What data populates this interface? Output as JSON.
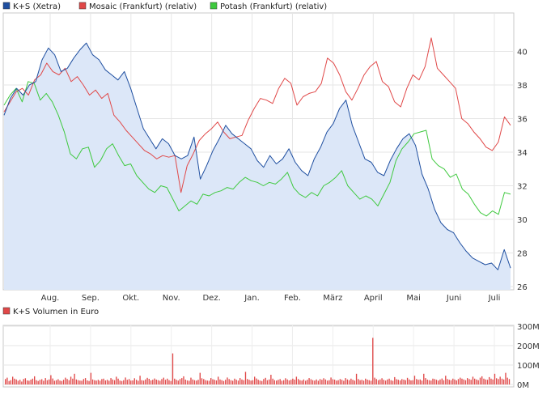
{
  "legend": [
    {
      "label": "K+S (Xetra)",
      "color": "#1f4fa0"
    },
    {
      "label": "Mosaic (Frankfurt) (relativ)",
      "color": "#e04848"
    },
    {
      "label": "Potash (Frankfurt) (relativ)",
      "color": "#3ec93e"
    }
  ],
  "volume_legend": {
    "label": "K+S Volumen in Euro",
    "color": "#e04848"
  },
  "chart_data": [
    {
      "type": "line",
      "ylim": [
        26,
        42
      ],
      "yticks": [
        26,
        28,
        30,
        32,
        34,
        36,
        38,
        40
      ],
      "xticks": [
        "Aug.",
        "Sep.",
        "Okt.",
        "Nov.",
        "Dez.",
        "Jan.",
        "Feb.",
        "März",
        "April",
        "Mai",
        "Juni",
        "Juli"
      ],
      "grid": true,
      "legend_position": "top-left",
      "series": [
        {
          "name": "K+S (Xetra)",
          "color": "#1f4fa0",
          "fill": "#dce7f8",
          "values": [
            36.2,
            37.2,
            37.8,
            37.4,
            38.0,
            38.2,
            39.5,
            40.2,
            39.8,
            38.8,
            39.0,
            39.6,
            40.1,
            40.5,
            39.8,
            39.5,
            38.9,
            38.6,
            38.3,
            38.8,
            37.8,
            36.6,
            35.4,
            34.8,
            34.2,
            34.8,
            34.5,
            33.8,
            33.6,
            33.8,
            34.9,
            32.4,
            33.2,
            34.1,
            34.8,
            35.6,
            35.1,
            34.8,
            34.5,
            34.2,
            33.5,
            33.1,
            33.8,
            33.3,
            33.6,
            34.2,
            33.4,
            32.9,
            32.6,
            33.6,
            34.3,
            35.2,
            35.7,
            36.6,
            37.1,
            35.6,
            34.6,
            33.6,
            33.4,
            32.8,
            32.6,
            33.5,
            34.2,
            34.8,
            35.1,
            34.4,
            32.7,
            31.8,
            30.6,
            29.8,
            29.4,
            29.2,
            28.6,
            28.1,
            27.7,
            27.5,
            27.3,
            27.4,
            27.0,
            28.2,
            27.1
          ]
        },
        {
          "name": "Mosaic (Frankfurt) (relativ)",
          "color": "#e04848",
          "values": [
            36.4,
            37.0,
            37.6,
            37.8,
            37.4,
            38.3,
            38.6,
            39.3,
            38.8,
            38.6,
            39.0,
            38.2,
            38.5,
            38.0,
            37.4,
            37.7,
            37.2,
            37.5,
            36.2,
            35.8,
            35.3,
            34.9,
            34.5,
            34.1,
            33.9,
            33.6,
            33.8,
            33.7,
            33.8,
            31.6,
            33.2,
            33.9,
            34.7,
            35.1,
            35.4,
            35.8,
            35.2,
            34.8,
            34.9,
            35.0,
            35.9,
            36.6,
            37.2,
            37.1,
            36.9,
            37.8,
            38.4,
            38.1,
            36.8,
            37.3,
            37.5,
            37.6,
            38.1,
            39.6,
            39.3,
            38.6,
            37.6,
            37.1,
            37.8,
            38.6,
            39.1,
            39.4,
            38.2,
            37.9,
            37.0,
            36.7,
            37.8,
            38.6,
            38.3,
            39.1,
            40.8,
            39.0,
            38.6,
            38.2,
            37.8,
            36.0,
            35.7,
            35.2,
            34.8,
            34.3,
            34.1,
            34.6,
            36.1,
            35.6
          ]
        },
        {
          "name": "Potash (Frankfurt) (relativ)",
          "color": "#3ec93e",
          "values": [
            36.8,
            37.4,
            37.8,
            37.0,
            38.2,
            38.1,
            37.1,
            37.5,
            37.0,
            36.2,
            35.2,
            33.9,
            33.6,
            34.2,
            34.3,
            33.1,
            33.5,
            34.2,
            34.5,
            33.8,
            33.2,
            33.3,
            32.6,
            32.2,
            31.8,
            31.6,
            32.0,
            31.9,
            31.2,
            30.5,
            30.8,
            31.1,
            30.9,
            31.5,
            31.4,
            31.6,
            31.7,
            31.9,
            31.8,
            32.2,
            32.5,
            32.3,
            32.2,
            32.0,
            32.2,
            32.1,
            32.4,
            32.8,
            31.9,
            31.5,
            31.3,
            31.6,
            31.4,
            32.0,
            32.2,
            32.5,
            32.9,
            32.0,
            31.6,
            31.2,
            31.4,
            31.2,
            30.8,
            31.5,
            32.2,
            33.5,
            34.2,
            34.6,
            35.1,
            35.2,
            35.3,
            33.6,
            33.2,
            33.0,
            32.5,
            32.7,
            31.8,
            31.5,
            30.9,
            30.4,
            30.2,
            30.5,
            30.3,
            31.6,
            31.5
          ]
        }
      ]
    },
    {
      "type": "bar",
      "ylim": [
        0,
        300
      ],
      "yticks": [
        0,
        100,
        200,
        300
      ],
      "ytick_labels": [
        "0M",
        "100M",
        "200M",
        "300M"
      ],
      "grid": true,
      "series": [
        {
          "name": "K+S Volumen in Euro",
          "color": "#e04848",
          "values": [
            28,
            35,
            18,
            22,
            40,
            30,
            26,
            19,
            24,
            15,
            28,
            32,
            21,
            19,
            25,
            30,
            42,
            22,
            18,
            24,
            27,
            19,
            33,
            22,
            26,
            48,
            31,
            19,
            22,
            27,
            20,
            18,
            24,
            35,
            28,
            22,
            40,
            30,
            55,
            26,
            22,
            20,
            19,
            28,
            33,
            21,
            18,
            60,
            26,
            22,
            20,
            24,
            19,
            28,
            30,
            21,
            24,
            19,
            33,
            26,
            22,
            40,
            30,
            20,
            18,
            22,
            36,
            24,
            28,
            20,
            21,
            32,
            24,
            19,
            45,
            22,
            20,
            26,
            34,
            29,
            21,
            24,
            31,
            25,
            22,
            19,
            28,
            35,
            24,
            30,
            22,
            18,
            160,
            30,
            24,
            20,
            28,
            33,
            42,
            25,
            21,
            19,
            35,
            26,
            22,
            20,
            24,
            60,
            32,
            28,
            22,
            20,
            19,
            33,
            27,
            24,
            21,
            40,
            26,
            22,
            18,
            24,
            36,
            28,
            22,
            19,
            30,
            24,
            20,
            33,
            26,
            22,
            65,
            28,
            24,
            20,
            22,
            40,
            31,
            24,
            20,
            18,
            28,
            34,
            22,
            26,
            50,
            30,
            22,
            20,
            24,
            28,
            19,
            22,
            32,
            26,
            21,
            24,
            30,
            25,
            40,
            28,
            22,
            20,
            26,
            19,
            24,
            33,
            27,
            22,
            20,
            26,
            19,
            28,
            24,
            32,
            26,
            20,
            22,
            36,
            27,
            25,
            20,
            22,
            28,
            24,
            19,
            33,
            26,
            22,
            30,
            24,
            20,
            55,
            28,
            22,
            24,
            20,
            30,
            25,
            22,
            19,
            240,
            35,
            28,
            22,
            26,
            32,
            24,
            20,
            26,
            30,
            22,
            19,
            38,
            27,
            24,
            21,
            28,
            25,
            22,
            34,
            26,
            21,
            22,
            45,
            28,
            24,
            26,
            20,
            55,
            33,
            25,
            22,
            20,
            30,
            28,
            24,
            20,
            26,
            31,
            22,
            45,
            28,
            24,
            22,
            30,
            26,
            21,
            28,
            35,
            30,
            26,
            22,
            33,
            28,
            24,
            40,
            30,
            26,
            22,
            35,
            42,
            30,
            26,
            24,
            38,
            30,
            26,
            55,
            32,
            28,
            40,
            30,
            26,
            60,
            35,
            28
          ]
        }
      ]
    }
  ]
}
